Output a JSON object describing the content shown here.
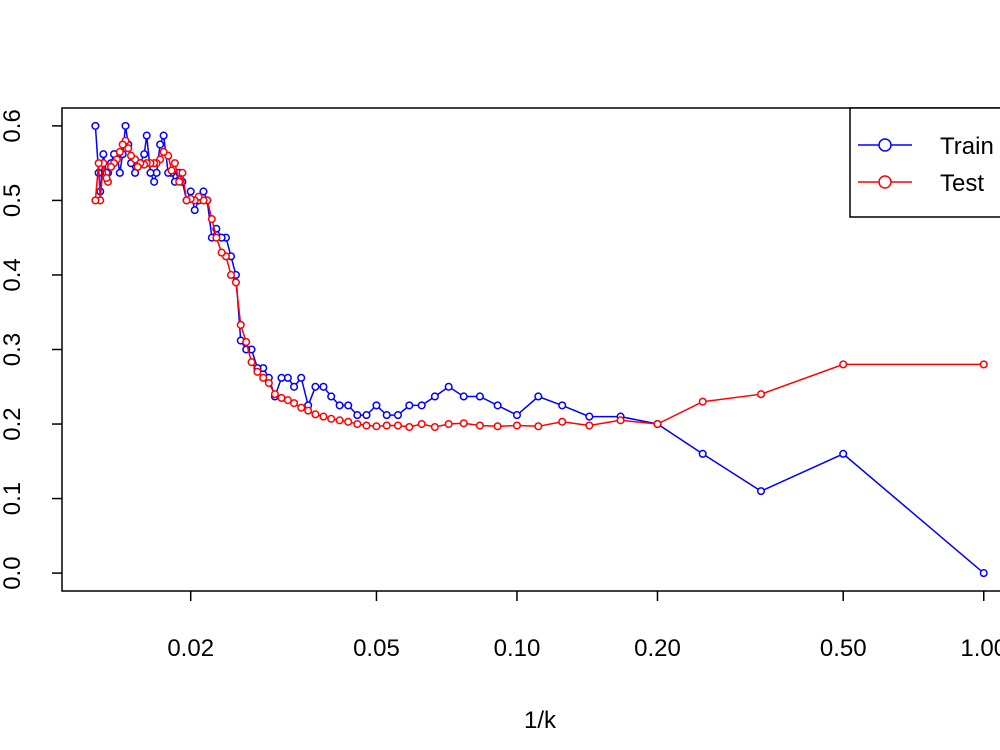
{
  "chart_data": {
    "type": "line",
    "log_x": true,
    "xlabel": "1/k",
    "x": [
      1,
      0.5,
      0.3333,
      0.25,
      0.2,
      0.1667,
      0.1429,
      0.125,
      0.1111,
      0.1,
      0.0909,
      0.0833,
      0.0769,
      0.0714,
      0.0667,
      0.0625,
      0.0588,
      0.0556,
      0.0526,
      0.05,
      0.0476,
      0.0455,
      0.0435,
      0.0417,
      0.04,
      0.0385,
      0.037,
      0.0357,
      0.0345,
      0.0333,
      0.0323,
      0.0313,
      0.0303,
      0.0294,
      0.0286,
      0.0278,
      0.027,
      0.0263,
      0.0256,
      0.025,
      0.0244,
      0.0238,
      0.0233,
      0.0227,
      0.0222,
      0.0217,
      0.0213,
      0.0208,
      0.0204,
      0.02,
      0.0196,
      0.0192,
      0.0189,
      0.0185,
      0.0182,
      0.0179,
      0.0175,
      0.0172,
      0.0169,
      0.0167,
      0.0164,
      0.0161,
      0.0159,
      0.0156,
      0.0154,
      0.0152,
      0.0149,
      0.0147,
      0.0145,
      0.0143,
      0.0141,
      0.0139,
      0.0137,
      0.0135,
      0.0133,
      0.0132,
      0.013,
      0.0128,
      0.0127,
      0.0125
    ],
    "series": [
      {
        "name": "Train",
        "color": "#0000ff",
        "values": [
          0,
          0.16,
          0.11,
          0.16,
          0.2,
          0.21,
          0.21,
          0.225,
          0.237,
          0.212,
          0.225,
          0.237,
          0.237,
          0.25,
          0.237,
          0.225,
          0.225,
          0.212,
          0.212,
          0.225,
          0.212,
          0.212,
          0.225,
          0.225,
          0.237,
          0.25,
          0.25,
          0.225,
          0.262,
          0.25,
          0.262,
          0.262,
          0.237,
          0.262,
          0.275,
          0.275,
          0.3,
          0.3,
          0.312,
          0.4,
          0.425,
          0.45,
          0.45,
          0.462,
          0.45,
          0.5,
          0.512,
          0.5,
          0.487,
          0.512,
          0.5,
          0.525,
          0.537,
          0.525,
          0.537,
          0.537,
          0.587,
          0.575,
          0.537,
          0.525,
          0.537,
          0.587,
          0.562,
          0.55,
          0.55,
          0.537,
          0.55,
          0.575,
          0.6,
          0.562,
          0.537,
          0.562,
          0.562,
          0.55,
          0.537,
          0.537,
          0.562,
          0.512,
          0.537,
          0.6
        ]
      },
      {
        "name": "Test",
        "color": "#ff0000",
        "values": [
          0.28,
          0.28,
          0.24,
          0.23,
          0.2,
          0.205,
          0.198,
          0.203,
          0.197,
          0.198,
          0.197,
          0.198,
          0.201,
          0.2,
          0.196,
          0.2,
          0.196,
          0.198,
          0.198,
          0.197,
          0.198,
          0.2,
          0.203,
          0.205,
          0.207,
          0.21,
          0.213,
          0.218,
          0.222,
          0.228,
          0.232,
          0.235,
          0.24,
          0.255,
          0.262,
          0.27,
          0.283,
          0.31,
          0.333,
          0.39,
          0.4,
          0.425,
          0.43,
          0.45,
          0.475,
          0.5,
          0.5,
          0.505,
          0.5,
          0.502,
          0.5,
          0.537,
          0.525,
          0.55,
          0.54,
          0.56,
          0.565,
          0.555,
          0.55,
          0.55,
          0.55,
          0.55,
          0.548,
          0.55,
          0.545,
          0.555,
          0.56,
          0.57,
          0.58,
          0.575,
          0.565,
          0.555,
          0.55,
          0.545,
          0.525,
          0.53,
          0.55,
          0.5,
          0.55,
          0.5
        ]
      }
    ],
    "xlim": [
      0.0106,
      1.19
    ],
    "ylim": [
      -0.024,
      0.624
    ],
    "xticks": [
      0.02,
      0.05,
      {
        "value": 0.1,
        "label": "0.10"
      },
      {
        "value": 0.2,
        "label": "0.20"
      },
      {
        "value": 0.5,
        "label": "0.50"
      },
      {
        "value": 1,
        "label": "1.00"
      }
    ],
    "yticks": [
      {
        "value": 0,
        "label": "0.0"
      },
      {
        "value": 0.1,
        "label": "0.1"
      },
      {
        "value": 0.2,
        "label": "0.2"
      },
      {
        "value": 0.3,
        "label": "0.3"
      },
      {
        "value": 0.4,
        "label": "0.4"
      },
      {
        "value": 0.5,
        "label": "0.5"
      },
      {
        "value": 0.6,
        "label": "0.6"
      }
    ],
    "legend": "top-right"
  }
}
